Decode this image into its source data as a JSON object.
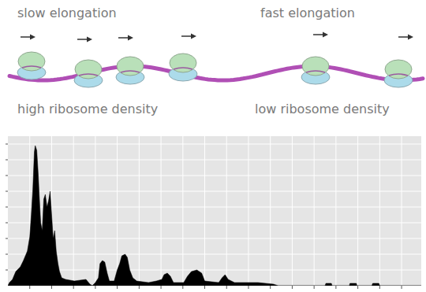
{
  "diagram": {
    "top_left": "slow elongation",
    "top_right": "fast elongation",
    "bottom_left": "high ribosome density",
    "bottom_right": "low ribosome density"
  },
  "chart_data": {
    "type": "area",
    "color": "#000000",
    "grid": true,
    "tick_labels": false,
    "xlim": [
      0,
      1890
    ],
    "ylim": [
      0,
      95
    ],
    "xticks": [
      100,
      200,
      300,
      400,
      500,
      600,
      700,
      800,
      900,
      1000,
      1100,
      1200,
      1300,
      1400,
      1500,
      1600,
      1700,
      1800
    ],
    "yticks": [
      10,
      20,
      30,
      40,
      50,
      60,
      70,
      80,
      90
    ],
    "x": [
      0,
      7,
      21,
      36,
      57,
      71,
      89,
      100,
      107,
      114,
      121,
      125,
      132,
      139,
      143,
      150,
      157,
      164,
      171,
      179,
      186,
      193,
      200,
      207,
      214,
      221,
      229,
      236,
      246,
      264,
      304,
      357,
      375,
      386,
      400,
      414,
      421,
      432,
      443,
      454,
      464,
      486,
      500,
      511,
      521,
      536,
      546,
      557,
      571,
      589,
      643,
      679,
      704,
      714,
      729,
      743,
      757,
      804,
      821,
      839,
      864,
      886,
      900,
      964,
      979,
      993,
      1007,
      1036,
      1143,
      1214,
      1236,
      1450,
      1454,
      1479,
      1482,
      1561,
      1564,
      1593,
      1596,
      1664,
      1668,
      1696,
      1700,
      1890
    ],
    "values": [
      0,
      2,
      4,
      9,
      12,
      16,
      22,
      31,
      45,
      61,
      85,
      89,
      86,
      70,
      58,
      40,
      35,
      55,
      58,
      50,
      54,
      60,
      45,
      30,
      35,
      22,
      14,
      9,
      5,
      4,
      3,
      4,
      1,
      0,
      2,
      5,
      14,
      16,
      15,
      8,
      3,
      3,
      10,
      14,
      19,
      20,
      18,
      10,
      5,
      3,
      2,
      3,
      4,
      7,
      8,
      6,
      2,
      2,
      6,
      9,
      10,
      8,
      3,
      2,
      5,
      7,
      4,
      2,
      2,
      1,
      0,
      0,
      1.5,
      1.5,
      0,
      0,
      1.5,
      1.5,
      0,
      0,
      1.5,
      1.5,
      0,
      0
    ]
  }
}
